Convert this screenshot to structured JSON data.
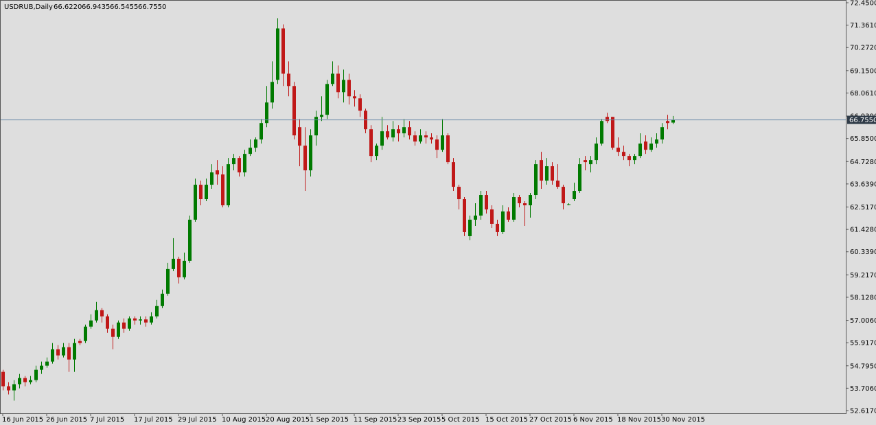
{
  "chart_data": {
    "type": "candlestick",
    "title": "USDRUB,Daily",
    "header_values": [
      "66.6220",
      "66.9435",
      "66.5455",
      "66.7550"
    ],
    "up_color": "#007a00",
    "down_color": "#c01818",
    "price_line": {
      "value": 66.755,
      "label": "66.7550"
    },
    "ylim": [
      52.617,
      72.45
    ],
    "yticks": [
      {
        "value": 72.45,
        "label": "72.4500"
      },
      {
        "value": 71.361,
        "label": "71.3610"
      },
      {
        "value": 70.272,
        "label": "70.2720"
      },
      {
        "value": 69.15,
        "label": "69.1500"
      },
      {
        "value": 68.061,
        "label": "68.0610"
      },
      {
        "value": 66.939,
        "label": "66.9390"
      },
      {
        "value": 65.85,
        "label": "65.8500"
      },
      {
        "value": 64.728,
        "label": "64.7280"
      },
      {
        "value": 63.639,
        "label": "63.6390"
      },
      {
        "value": 62.517,
        "label": "62.5170"
      },
      {
        "value": 61.428,
        "label": "61.4280"
      },
      {
        "value": 60.339,
        "label": "60.3390"
      },
      {
        "value": 59.217,
        "label": "59.2170"
      },
      {
        "value": 58.128,
        "label": "58.1280"
      },
      {
        "value": 57.006,
        "label": "57.0060"
      },
      {
        "value": 55.917,
        "label": "55.9170"
      },
      {
        "value": 54.795,
        "label": "54.7950"
      },
      {
        "value": 53.706,
        "label": "53.7060"
      },
      {
        "value": 52.617,
        "label": "52.6170"
      }
    ],
    "categories": [
      "16 Jun 2015",
      null,
      null,
      null,
      null,
      null,
      null,
      null,
      "26 Jun 2015",
      null,
      null,
      null,
      null,
      null,
      null,
      null,
      "7 Jul 2015",
      null,
      null,
      null,
      null,
      null,
      null,
      null,
      "17 Jul 2015",
      null,
      null,
      null,
      null,
      null,
      null,
      null,
      "29 Jul 2015",
      null,
      null,
      null,
      null,
      null,
      null,
      null,
      "10 Aug 2015",
      null,
      null,
      null,
      null,
      null,
      null,
      null,
      "20 Aug 2015",
      null,
      null,
      null,
      null,
      null,
      null,
      null,
      "1 Sep 2015",
      null,
      null,
      null,
      null,
      null,
      null,
      null,
      "11 Sep 2015",
      null,
      null,
      null,
      null,
      null,
      null,
      null,
      "23 Sep 2015",
      null,
      null,
      null,
      null,
      null,
      null,
      null,
      "5 Oct 2015",
      null,
      null,
      null,
      null,
      null,
      null,
      null,
      "15 Oct 2015",
      null,
      null,
      null,
      null,
      null,
      null,
      null,
      "27 Oct 2015",
      null,
      null,
      null,
      null,
      null,
      null,
      null,
      "6 Nov 2015",
      null,
      null,
      null,
      null,
      null,
      null,
      null,
      "18 Nov 2015",
      null,
      null,
      null,
      null,
      null,
      null,
      null,
      "30 Nov 2015",
      null,
      null
    ],
    "candles": [
      {
        "open": 54.5,
        "high": 54.6,
        "low": 53.6,
        "close": 53.8
      },
      {
        "open": 53.8,
        "high": 54.0,
        "low": 53.4,
        "close": 53.6
      },
      {
        "open": 53.6,
        "high": 54.1,
        "low": 53.1,
        "close": 53.9
      },
      {
        "open": 53.9,
        "high": 54.4,
        "low": 53.7,
        "close": 54.2
      },
      {
        "open": 54.2,
        "high": 54.3,
        "low": 53.8,
        "close": 54.0
      },
      {
        "open": 54.0,
        "high": 54.3,
        "low": 53.9,
        "close": 54.1
      },
      {
        "open": 54.1,
        "high": 54.8,
        "low": 54.0,
        "close": 54.6
      },
      {
        "open": 54.6,
        "high": 55.0,
        "low": 54.4,
        "close": 54.8
      },
      {
        "open": 54.8,
        "high": 55.2,
        "low": 54.7,
        "close": 55.0
      },
      {
        "open": 55.0,
        "high": 55.9,
        "low": 54.9,
        "close": 55.6
      },
      {
        "open": 55.6,
        "high": 55.8,
        "low": 55.1,
        "close": 55.3
      },
      {
        "open": 55.3,
        "high": 55.9,
        "low": 55.2,
        "close": 55.7
      },
      {
        "open": 55.7,
        "high": 55.9,
        "low": 54.5,
        "close": 55.1
      },
      {
        "open": 55.1,
        "high": 56.1,
        "low": 54.5,
        "close": 55.9
      },
      {
        "open": 56.0,
        "high": 56.1,
        "low": 55.8,
        "close": 55.9
      },
      {
        "open": 56.0,
        "high": 56.8,
        "low": 55.9,
        "close": 56.7
      },
      {
        "open": 56.7,
        "high": 57.3,
        "low": 56.6,
        "close": 57.0
      },
      {
        "open": 57.0,
        "high": 57.9,
        "low": 56.9,
        "close": 57.5
      },
      {
        "open": 57.5,
        "high": 57.6,
        "low": 56.9,
        "close": 57.2
      },
      {
        "open": 57.2,
        "high": 57.3,
        "low": 56.4,
        "close": 56.6
      },
      {
        "open": 56.6,
        "high": 56.8,
        "low": 55.6,
        "close": 56.2
      },
      {
        "open": 56.2,
        "high": 57.0,
        "low": 56.1,
        "close": 56.9
      },
      {
        "open": 56.9,
        "high": 57.1,
        "low": 56.4,
        "close": 56.6
      },
      {
        "open": 56.6,
        "high": 57.2,
        "low": 56.5,
        "close": 57.1
      },
      {
        "open": 57.1,
        "high": 57.2,
        "low": 56.8,
        "close": 57.0
      },
      {
        "open": 57.0,
        "high": 57.2,
        "low": 56.8,
        "close": 57.05
      },
      {
        "open": 57.05,
        "high": 57.2,
        "low": 56.7,
        "close": 56.9
      },
      {
        "open": 56.9,
        "high": 57.4,
        "low": 56.8,
        "close": 57.2
      },
      {
        "open": 57.2,
        "high": 58.0,
        "low": 57.1,
        "close": 57.7
      },
      {
        "open": 57.7,
        "high": 58.5,
        "low": 57.6,
        "close": 58.3
      },
      {
        "open": 58.3,
        "high": 59.8,
        "low": 58.2,
        "close": 59.5
      },
      {
        "open": 59.5,
        "high": 61.0,
        "low": 59.4,
        "close": 60.0
      },
      {
        "open": 60.0,
        "high": 60.1,
        "low": 58.8,
        "close": 59.1
      },
      {
        "open": 59.1,
        "high": 60.3,
        "low": 59.0,
        "close": 59.9
      },
      {
        "open": 59.9,
        "high": 62.1,
        "low": 59.8,
        "close": 61.9
      },
      {
        "open": 61.9,
        "high": 63.9,
        "low": 61.8,
        "close": 63.6
      },
      {
        "open": 63.6,
        "high": 63.8,
        "low": 62.6,
        "close": 62.9
      },
      {
        "open": 62.9,
        "high": 63.9,
        "low": 62.8,
        "close": 63.6
      },
      {
        "open": 63.6,
        "high": 64.6,
        "low": 63.4,
        "close": 64.2
      },
      {
        "open": 64.3,
        "high": 64.8,
        "low": 63.6,
        "close": 64.1
      },
      {
        "open": 64.1,
        "high": 64.5,
        "low": 62.5,
        "close": 62.6
      },
      {
        "open": 62.6,
        "high": 64.9,
        "low": 62.5,
        "close": 64.6
      },
      {
        "open": 64.6,
        "high": 65.1,
        "low": 64.3,
        "close": 64.9
      },
      {
        "open": 64.9,
        "high": 65.0,
        "low": 64.0,
        "close": 64.2
      },
      {
        "open": 64.2,
        "high": 65.3,
        "low": 64.0,
        "close": 65.1
      },
      {
        "open": 65.1,
        "high": 65.8,
        "low": 65.0,
        "close": 65.4
      },
      {
        "open": 65.4,
        "high": 65.9,
        "low": 65.2,
        "close": 65.8
      },
      {
        "open": 65.8,
        "high": 66.8,
        "low": 65.6,
        "close": 66.6
      },
      {
        "open": 66.6,
        "high": 68.4,
        "low": 66.4,
        "close": 67.6
      },
      {
        "open": 67.6,
        "high": 69.6,
        "low": 67.3,
        "close": 68.6
      },
      {
        "open": 68.7,
        "high": 71.7,
        "low": 68.5,
        "close": 71.2
      },
      {
        "open": 71.2,
        "high": 71.4,
        "low": 68.4,
        "close": 69.0
      },
      {
        "open": 69.0,
        "high": 69.6,
        "low": 67.9,
        "close": 68.4
      },
      {
        "open": 68.4,
        "high": 68.6,
        "low": 65.8,
        "close": 66.0
      },
      {
        "open": 66.4,
        "high": 66.8,
        "low": 64.5,
        "close": 65.5
      },
      {
        "open": 65.5,
        "high": 66.4,
        "low": 63.3,
        "close": 64.3
      },
      {
        "open": 64.3,
        "high": 66.3,
        "low": 64.0,
        "close": 66.0
      },
      {
        "open": 66.0,
        "high": 67.2,
        "low": 65.5,
        "close": 66.9
      },
      {
        "open": 66.9,
        "high": 67.9,
        "low": 66.7,
        "close": 67.0
      },
      {
        "open": 67.0,
        "high": 68.7,
        "low": 66.8,
        "close": 68.5
      },
      {
        "open": 68.5,
        "high": 69.6,
        "low": 68.4,
        "close": 69.0
      },
      {
        "open": 69.0,
        "high": 69.4,
        "low": 67.8,
        "close": 68.1
      },
      {
        "open": 68.1,
        "high": 69.2,
        "low": 67.6,
        "close": 68.7
      },
      {
        "open": 68.7,
        "high": 69.0,
        "low": 67.5,
        "close": 67.9
      },
      {
        "open": 67.9,
        "high": 68.2,
        "low": 67.4,
        "close": 67.8
      },
      {
        "open": 67.8,
        "high": 68.0,
        "low": 66.9,
        "close": 67.2
      },
      {
        "open": 67.2,
        "high": 67.3,
        "low": 66.1,
        "close": 66.3
      },
      {
        "open": 66.3,
        "high": 66.5,
        "low": 64.7,
        "close": 65.0
      },
      {
        "open": 65.0,
        "high": 65.6,
        "low": 64.8,
        "close": 65.5
      },
      {
        "open": 65.5,
        "high": 66.9,
        "low": 65.3,
        "close": 66.2
      },
      {
        "open": 66.2,
        "high": 66.5,
        "low": 65.8,
        "close": 65.9
      },
      {
        "open": 65.9,
        "high": 66.7,
        "low": 65.7,
        "close": 66.3
      },
      {
        "open": 66.3,
        "high": 66.5,
        "low": 65.7,
        "close": 66.1
      },
      {
        "open": 66.1,
        "high": 66.8,
        "low": 65.9,
        "close": 66.4
      },
      {
        "open": 66.4,
        "high": 66.7,
        "low": 65.8,
        "close": 66.0
      },
      {
        "open": 66.0,
        "high": 66.2,
        "low": 65.5,
        "close": 65.7
      },
      {
        "open": 65.7,
        "high": 66.3,
        "low": 65.6,
        "close": 66.0
      },
      {
        "open": 66.0,
        "high": 66.2,
        "low": 65.6,
        "close": 65.9
      },
      {
        "open": 65.9,
        "high": 66.1,
        "low": 65.6,
        "close": 65.8
      },
      {
        "open": 65.8,
        "high": 66.0,
        "low": 64.9,
        "close": 65.3
      },
      {
        "open": 65.3,
        "high": 66.8,
        "low": 65.2,
        "close": 66.0
      },
      {
        "open": 66.0,
        "high": 66.1,
        "low": 64.6,
        "close": 64.7
      },
      {
        "open": 64.7,
        "high": 64.9,
        "low": 63.3,
        "close": 63.5
      },
      {
        "open": 63.5,
        "high": 63.6,
        "low": 62.4,
        "close": 62.9
      },
      {
        "open": 62.9,
        "high": 63.0,
        "low": 61.1,
        "close": 61.3
      },
      {
        "open": 61.1,
        "high": 62.1,
        "low": 60.9,
        "close": 61.9
      },
      {
        "open": 61.9,
        "high": 62.7,
        "low": 61.6,
        "close": 62.1
      },
      {
        "open": 62.1,
        "high": 63.3,
        "low": 61.9,
        "close": 63.1
      },
      {
        "open": 63.1,
        "high": 63.3,
        "low": 62.2,
        "close": 62.4
      },
      {
        "open": 62.4,
        "high": 62.6,
        "low": 61.5,
        "close": 61.7
      },
      {
        "open": 61.7,
        "high": 61.9,
        "low": 61.1,
        "close": 61.3
      },
      {
        "open": 61.3,
        "high": 62.6,
        "low": 61.2,
        "close": 62.3
      },
      {
        "open": 62.3,
        "high": 62.5,
        "low": 61.8,
        "close": 61.9
      },
      {
        "open": 61.9,
        "high": 63.2,
        "low": 61.8,
        "close": 63.0
      },
      {
        "open": 63.0,
        "high": 63.1,
        "low": 62.5,
        "close": 62.7
      },
      {
        "open": 62.7,
        "high": 62.8,
        "low": 61.6,
        "close": 62.6
      },
      {
        "open": 62.6,
        "high": 63.2,
        "low": 62.0,
        "close": 63.1
      },
      {
        "open": 63.1,
        "high": 64.8,
        "low": 62.9,
        "close": 64.6
      },
      {
        "open": 64.8,
        "high": 65.2,
        "low": 63.4,
        "close": 63.8
      },
      {
        "open": 63.8,
        "high": 64.9,
        "low": 63.6,
        "close": 64.5
      },
      {
        "open": 64.5,
        "high": 64.7,
        "low": 63.6,
        "close": 63.8
      },
      {
        "open": 63.8,
        "high": 64.6,
        "low": 63.4,
        "close": 63.5
      },
      {
        "open": 63.5,
        "high": 63.6,
        "low": 62.4,
        "close": 62.7
      },
      {
        "open": 62.65,
        "high": 62.7,
        "low": 62.6,
        "close": 62.65
      },
      {
        "open": 62.9,
        "high": 63.7,
        "low": 62.8,
        "close": 63.3
      },
      {
        "open": 63.3,
        "high": 64.9,
        "low": 63.2,
        "close": 64.6
      },
      {
        "open": 64.8,
        "high": 65.0,
        "low": 64.3,
        "close": 64.7
      },
      {
        "open": 64.6,
        "high": 65.0,
        "low": 64.2,
        "close": 64.8
      },
      {
        "open": 64.8,
        "high": 65.9,
        "low": 64.6,
        "close": 65.6
      },
      {
        "open": 65.6,
        "high": 66.8,
        "low": 65.5,
        "close": 66.7
      },
      {
        "open": 66.9,
        "high": 67.1,
        "low": 66.6,
        "close": 66.7
      },
      {
        "open": 66.9,
        "high": 66.9,
        "low": 65.3,
        "close": 65.4
      },
      {
        "open": 65.4,
        "high": 65.9,
        "low": 65.0,
        "close": 65.2
      },
      {
        "open": 65.2,
        "high": 65.5,
        "low": 64.8,
        "close": 65.0
      },
      {
        "open": 65.0,
        "high": 65.1,
        "low": 64.5,
        "close": 64.8
      },
      {
        "open": 64.8,
        "high": 65.1,
        "low": 64.6,
        "close": 65.0
      },
      {
        "open": 65.0,
        "high": 66.1,
        "low": 64.9,
        "close": 65.6
      },
      {
        "open": 65.7,
        "high": 66.0,
        "low": 65.1,
        "close": 65.3
      },
      {
        "open": 65.3,
        "high": 65.9,
        "low": 65.2,
        "close": 65.6
      },
      {
        "open": 65.6,
        "high": 66.1,
        "low": 65.4,
        "close": 65.8
      },
      {
        "open": 65.8,
        "high": 66.6,
        "low": 65.6,
        "close": 66.4
      },
      {
        "open": 66.7,
        "high": 67.0,
        "low": 66.3,
        "close": 66.6
      },
      {
        "open": 66.622,
        "high": 66.9435,
        "low": 66.5455,
        "close": 66.755
      }
    ]
  }
}
